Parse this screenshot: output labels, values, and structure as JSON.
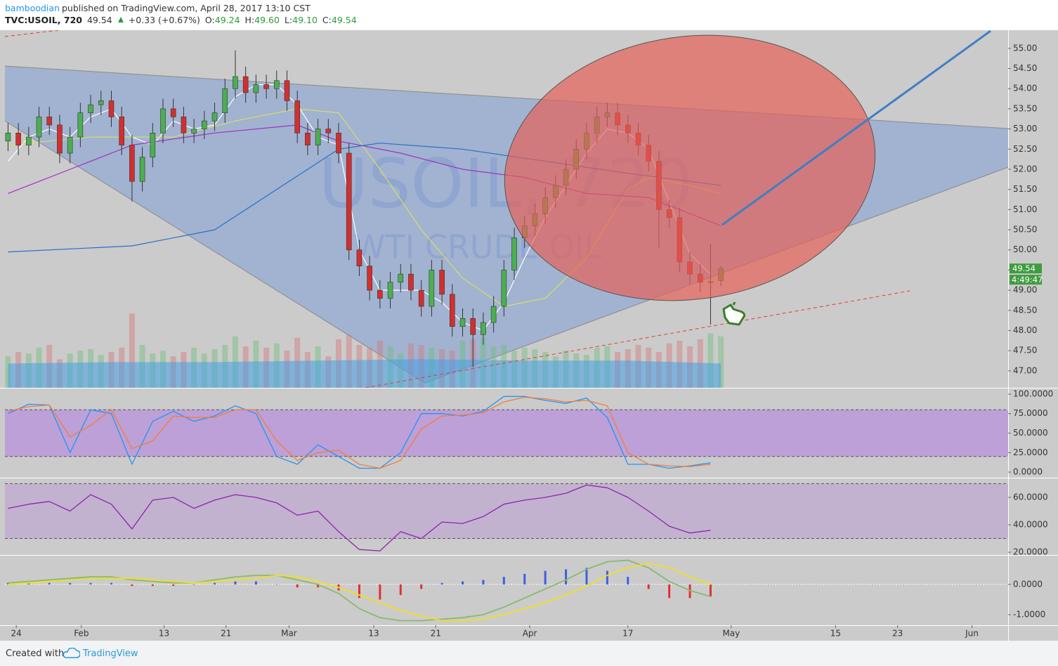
{
  "header": {
    "author": "bamboodian",
    "published": "published on TradingView.com, April 28, 2017 13:10 CST",
    "symbol": "TVC:USOIL, 720",
    "last": "49.54",
    "change": "+0.33 (+0.67%)",
    "ohlc": [
      {
        "label": "O:",
        "value": "49.24"
      },
      {
        "label": "H:",
        "value": "49.60"
      },
      {
        "label": "L:",
        "value": "49.10"
      },
      {
        "label": "C:",
        "value": "49.54"
      }
    ]
  },
  "footer": {
    "created": "Created with",
    "brand": "TradingView"
  },
  "chart_data": [
    {
      "type": "candlestick",
      "watermark": "USOIL, 720",
      "subtitle": "WTI CRUDE OIL",
      "up_color": "#4caf50",
      "down_color": "#d32f2f",
      "volume_up_color": "rgba(110,190,120,0.45)",
      "volume_down_color": "rgba(215,120,120,0.45)",
      "volume_ma_color": "rgba(70,160,230,0.55)",
      "x": [
        0,
        1,
        2,
        3,
        4,
        5,
        6,
        7,
        8,
        9,
        10,
        11,
        12,
        13,
        14,
        15,
        16,
        17,
        18,
        19,
        20,
        21,
        22,
        23,
        24,
        25,
        26,
        27,
        28,
        29,
        30,
        31,
        32,
        33,
        34,
        35,
        36,
        37,
        38,
        39,
        40,
        41,
        42,
        43,
        44,
        45,
        46,
        47,
        48,
        49,
        50,
        51,
        52,
        53,
        54,
        55,
        56,
        57,
        58,
        59,
        60,
        61,
        62,
        63,
        64,
        65,
        66,
        67,
        68,
        69
      ],
      "open": [
        52.7,
        52.9,
        52.6,
        52.8,
        53.3,
        53.1,
        52.4,
        52.8,
        53.4,
        53.6,
        53.7,
        53.3,
        52.6,
        51.7,
        52.3,
        52.9,
        53.5,
        53.3,
        52.9,
        53.0,
        53.2,
        53.4,
        54.0,
        54.3,
        53.9,
        54.1,
        54.0,
        54.2,
        53.7,
        52.9,
        52.6,
        53.0,
        52.9,
        52.4,
        50.0,
        49.6,
        49.0,
        48.8,
        49.2,
        49.4,
        49.0,
        48.6,
        49.5,
        48.9,
        48.1,
        48.3,
        47.9,
        48.2,
        48.6,
        49.5,
        50.3,
        50.6,
        50.9,
        51.3,
        51.6,
        52.0,
        52.5,
        52.9,
        53.3,
        53.4,
        53.1,
        52.9,
        52.6,
        52.2,
        51.0,
        50.8,
        49.7,
        49.4,
        49.2,
        49.24
      ],
      "high": [
        53.15,
        53.15,
        53.05,
        53.55,
        53.55,
        53.35,
        53.05,
        53.65,
        53.85,
        53.95,
        53.95,
        53.55,
        52.85,
        52.55,
        53.15,
        53.75,
        53.75,
        53.55,
        53.25,
        53.45,
        53.65,
        54.25,
        54.95,
        54.55,
        54.35,
        54.35,
        54.45,
        54.45,
        53.95,
        53.15,
        53.25,
        53.25,
        53.15,
        52.65,
        50.25,
        49.85,
        49.25,
        49.45,
        49.65,
        49.65,
        49.25,
        49.75,
        49.75,
        49.15,
        48.55,
        48.55,
        48.45,
        48.85,
        49.75,
        50.55,
        50.85,
        51.15,
        51.55,
        51.85,
        52.25,
        52.75,
        53.15,
        53.55,
        53.65,
        53.65,
        53.35,
        53.15,
        52.85,
        52.45,
        51.25,
        51.05,
        49.95,
        49.65,
        50.15,
        49.6
      ],
      "low": [
        52.45,
        52.35,
        52.35,
        52.55,
        52.85,
        52.15,
        52.15,
        52.55,
        53.15,
        53.35,
        53.05,
        52.35,
        51.2,
        51.45,
        52.05,
        52.65,
        53.05,
        52.65,
        52.65,
        52.75,
        52.95,
        53.15,
        53.75,
        53.65,
        53.65,
        53.75,
        53.75,
        53.45,
        52.65,
        52.35,
        52.35,
        52.65,
        52.15,
        49.75,
        49.35,
        48.75,
        48.55,
        48.55,
        48.95,
        48.75,
        48.35,
        48.35,
        48.65,
        47.85,
        47.85,
        47.1,
        47.65,
        47.95,
        48.35,
        49.25,
        50.05,
        50.35,
        50.65,
        51.05,
        51.35,
        51.75,
        52.25,
        52.65,
        53.05,
        52.85,
        52.65,
        52.35,
        51.95,
        50.05,
        50.55,
        49.45,
        49.15,
        48.95,
        48.15,
        49.1
      ],
      "close": [
        52.9,
        52.6,
        52.8,
        53.3,
        53.1,
        52.4,
        52.8,
        53.4,
        53.6,
        53.7,
        53.3,
        52.6,
        51.7,
        52.3,
        52.9,
        53.5,
        53.3,
        52.9,
        53.0,
        53.2,
        53.4,
        54.0,
        54.3,
        53.9,
        54.1,
        54.0,
        54.2,
        53.7,
        52.9,
        52.6,
        53.0,
        52.9,
        52.4,
        50.0,
        49.6,
        49.0,
        48.8,
        49.2,
        49.4,
        49.0,
        48.6,
        49.5,
        48.9,
        48.1,
        48.3,
        47.9,
        48.2,
        48.6,
        49.5,
        50.3,
        50.6,
        50.9,
        51.3,
        51.6,
        52.0,
        52.5,
        52.9,
        53.3,
        53.4,
        53.1,
        52.9,
        52.6,
        52.2,
        51.0,
        50.8,
        49.7,
        49.4,
        49.2,
        49.21,
        49.54
      ],
      "volume": [
        22,
        25,
        24,
        28,
        30,
        20,
        24,
        26,
        27,
        23,
        25,
        28,
        52,
        30,
        24,
        26,
        22,
        25,
        28,
        24,
        27,
        30,
        36,
        29,
        33,
        28,
        31,
        26,
        35,
        25,
        29,
        22,
        34,
        37,
        30,
        28,
        33,
        29,
        24,
        31,
        30,
        28,
        27,
        26,
        33,
        34,
        35,
        29,
        30,
        26,
        28,
        27,
        25,
        22,
        26,
        24,
        23,
        28,
        29,
        25,
        27,
        30,
        28,
        25,
        31,
        33,
        29,
        34,
        38,
        36
      ],
      "vlim": [
        0,
        250
      ],
      "volume_ma": {
        "x": [
          0,
          10,
          20,
          30,
          40,
          50,
          60,
          69
        ],
        "values": [
          17,
          18,
          18,
          19,
          20,
          19,
          19,
          17
        ]
      },
      "moving_averages": [
        {
          "color": "#ffffff",
          "x": [
            0,
            2,
            4,
            6,
            8,
            10,
            12,
            14,
            16,
            18,
            20,
            22,
            24,
            26,
            28,
            30,
            32,
            34,
            36,
            38,
            40,
            42,
            44,
            46,
            48,
            50,
            52,
            54,
            56,
            58,
            60,
            62,
            64,
            66,
            68
          ],
          "values": [
            52.2,
            52.8,
            53.0,
            52.8,
            53.3,
            53.5,
            52.8,
            52.6,
            53.2,
            53.0,
            53.1,
            53.8,
            54.1,
            54.1,
            53.6,
            52.8,
            52.6,
            50.0,
            49.0,
            49.0,
            49.0,
            48.7,
            48.2,
            48.0,
            48.7,
            49.8,
            50.8,
            51.6,
            52.4,
            53.0,
            52.9,
            52.5,
            51.2,
            49.9,
            49.4
          ]
        },
        {
          "color": "#d8dc6a",
          "x": [
            0,
            8,
            16,
            22,
            28,
            32,
            36,
            40,
            44,
            48,
            52,
            56,
            60,
            62,
            66,
            69
          ],
          "values": [
            52.6,
            52.8,
            52.8,
            53.2,
            53.5,
            53.4,
            52.0,
            50.5,
            49.3,
            48.6,
            48.8,
            49.8,
            51.5,
            51.8,
            51.6,
            51.4
          ]
        },
        {
          "color": "#a033c0",
          "x": [
            0,
            6,
            12,
            20,
            28,
            32,
            38,
            44,
            50,
            56,
            62,
            66,
            69
          ],
          "values": [
            51.4,
            52.0,
            52.6,
            52.9,
            53.1,
            52.7,
            52.4,
            52.0,
            51.8,
            51.4,
            51.3,
            50.9,
            50.6
          ]
        },
        {
          "color": "#2a6fc9",
          "x": [
            0,
            12,
            20,
            26,
            32,
            36,
            44,
            52,
            60,
            69
          ],
          "values": [
            49.95,
            50.1,
            50.5,
            51.5,
            52.5,
            52.65,
            52.5,
            52.2,
            51.9,
            51.6
          ]
        }
      ],
      "price_tag": {
        "value": 49.54,
        "label": "49.54",
        "color": "#3f9c3f"
      },
      "countdown": "4:49:47",
      "xlim": [
        -0.3,
        96.8
      ],
      "xticks": [
        {
          "value": 0.8,
          "label": "24"
        },
        {
          "value": 7.1,
          "label": "Feb"
        },
        {
          "value": 15.1,
          "label": "13"
        },
        {
          "value": 21.1,
          "label": "21"
        },
        {
          "value": 27.2,
          "label": "Mar"
        },
        {
          "value": 35.4,
          "label": "13"
        },
        {
          "value": 41.4,
          "label": "21"
        },
        {
          "value": 50.5,
          "label": "Apr"
        },
        {
          "value": 60.0,
          "label": "17"
        },
        {
          "value": 70.0,
          "label": "May"
        },
        {
          "value": 80.1,
          "label": "15"
        },
        {
          "value": 86.1,
          "label": "23"
        },
        {
          "value": 93.3,
          "label": "Jun"
        }
      ],
      "ylim": [
        46.58,
        55.45
      ],
      "yticks": [
        {
          "value": 47,
          "label": "47.00"
        },
        {
          "value": 47.5,
          "label": "47.50"
        },
        {
          "value": 48,
          "label": "48.00"
        },
        {
          "value": 48.5,
          "label": "48.50"
        },
        {
          "value": 49,
          "label": "49.00"
        },
        {
          "value": 49.5,
          "label": "49.50"
        },
        {
          "value": 50,
          "label": "50.00"
        },
        {
          "value": 50.5,
          "label": "50.50"
        },
        {
          "value": 51,
          "label": "51.00"
        },
        {
          "value": 51.5,
          "label": "51.50"
        },
        {
          "value": 52,
          "label": "52.00"
        },
        {
          "value": 52.5,
          "label": "52.50"
        },
        {
          "value": 53,
          "label": "53.00"
        },
        {
          "value": 53.5,
          "label": "53.50"
        },
        {
          "value": 54,
          "label": "54.00"
        },
        {
          "value": 54.5,
          "label": "54.50"
        },
        {
          "value": 55,
          "label": "55.00"
        }
      ]
    },
    {
      "type": "line",
      "band": [
        20,
        80
      ],
      "band_color": "rgba(170,100,230,0.42)",
      "x": [
        0,
        2,
        4,
        6,
        8,
        10,
        12,
        14,
        16,
        18,
        20,
        22,
        24,
        26,
        28,
        30,
        32,
        34,
        36,
        38,
        40,
        42,
        44,
        46,
        48,
        50,
        52,
        54,
        56,
        58,
        60,
        62,
        64,
        66,
        68
      ],
      "series": [
        {
          "color": "#2196f3",
          "values": [
            75,
            87,
            86,
            25,
            80,
            75,
            10,
            65,
            78,
            65,
            72,
            85,
            75,
            20,
            10,
            35,
            20,
            5,
            5,
            25,
            75,
            75,
            72,
            78,
            97,
            97,
            92,
            88,
            95,
            70,
            10,
            10,
            5,
            8,
            12
          ]
        },
        {
          "color": "#f57c3a",
          "values": [
            78,
            84,
            86,
            45,
            60,
            80,
            30,
            40,
            72,
            70,
            70,
            80,
            80,
            40,
            15,
            25,
            28,
            10,
            5,
            15,
            55,
            72,
            73,
            76,
            90,
            96,
            94,
            90,
            92,
            85,
            25,
            10,
            8,
            7,
            10
          ]
        }
      ],
      "ylim": [
        -7.2,
        107.2
      ],
      "yticks": [
        {
          "value": 0,
          "label": "0.0000"
        },
        {
          "value": 25,
          "label": "25.0000"
        },
        {
          "value": 50,
          "label": "50.0000"
        },
        {
          "value": 75,
          "label": "75.0000"
        },
        {
          "value": 100,
          "label": "100.0000"
        }
      ]
    },
    {
      "type": "line",
      "band": [
        30,
        70
      ],
      "band_color": "rgba(180,140,215,0.4)",
      "x": [
        0,
        2,
        4,
        6,
        8,
        10,
        12,
        14,
        16,
        18,
        20,
        22,
        24,
        26,
        28,
        30,
        32,
        34,
        36,
        38,
        40,
        42,
        44,
        46,
        48,
        50,
        52,
        54,
        56,
        58,
        60,
        62,
        64,
        66,
        68
      ],
      "series": [
        {
          "color": "#8e24aa",
          "values": [
            52,
            55,
            57,
            50,
            62,
            55,
            37,
            58,
            60,
            52,
            58,
            62,
            60,
            56,
            47,
            50,
            35,
            22,
            21,
            35,
            30,
            42,
            41,
            46,
            55,
            58,
            60,
            63,
            69,
            67,
            60,
            50,
            39,
            34,
            36
          ]
        }
      ],
      "ylim": [
        18,
        73.8
      ],
      "yticks": [
        {
          "value": 20,
          "label": "20.0000"
        },
        {
          "value": 40,
          "label": "40.0000"
        },
        {
          "value": 60,
          "label": "60.0000"
        }
      ]
    },
    {
      "type": "macd",
      "positive_color": "#3d5fe0",
      "negative_color": "#e03030",
      "x": [
        0,
        2,
        4,
        6,
        8,
        10,
        12,
        14,
        16,
        18,
        20,
        22,
        24,
        26,
        28,
        30,
        32,
        34,
        36,
        38,
        40,
        42,
        44,
        46,
        48,
        50,
        52,
        54,
        56,
        58,
        60,
        62,
        64,
        66,
        68
      ],
      "histogram": [
        0.05,
        0.05,
        0.05,
        0.05,
        0.05,
        0.05,
        -0.05,
        -0.05,
        -0.05,
        0,
        0.05,
        0.1,
        0.1,
        0,
        -0.1,
        -0.1,
        -0.2,
        -0.45,
        -0.5,
        -0.35,
        -0.15,
        0.05,
        0.1,
        0.15,
        0.25,
        0.35,
        0.45,
        0.5,
        0.55,
        0.45,
        0.25,
        -0.15,
        -0.45,
        -0.45,
        -0.4
      ],
      "series": [
        {
          "color": "#8bb870",
          "values": [
            0.05,
            0.1,
            0.15,
            0.2,
            0.25,
            0.25,
            0.15,
            0.1,
            0.05,
            0.05,
            0.15,
            0.25,
            0.3,
            0.3,
            0.15,
            0.0,
            -0.3,
            -0.8,
            -1.1,
            -1.2,
            -1.2,
            -1.15,
            -1.1,
            -1.0,
            -0.75,
            -0.45,
            -0.15,
            0.15,
            0.5,
            0.75,
            0.8,
            0.55,
            0.1,
            -0.2,
            -0.4
          ]
        },
        {
          "color": "#f0e020",
          "values": [
            0.0,
            0.05,
            0.1,
            0.15,
            0.2,
            0.2,
            0.2,
            0.15,
            0.1,
            0.05,
            0.1,
            0.15,
            0.2,
            0.3,
            0.25,
            0.1,
            -0.1,
            -0.35,
            -0.6,
            -0.85,
            -1.05,
            -1.2,
            -1.2,
            -1.15,
            -1.0,
            -0.8,
            -0.6,
            -0.35,
            -0.05,
            0.3,
            0.55,
            0.7,
            0.55,
            0.25,
            0.0
          ]
        }
      ],
      "ylim": [
        -1.35,
        0.95
      ],
      "yticks": [
        {
          "value": -1,
          "label": "-1.0000"
        },
        {
          "value": 0,
          "label": "0.0000"
        }
      ]
    }
  ]
}
